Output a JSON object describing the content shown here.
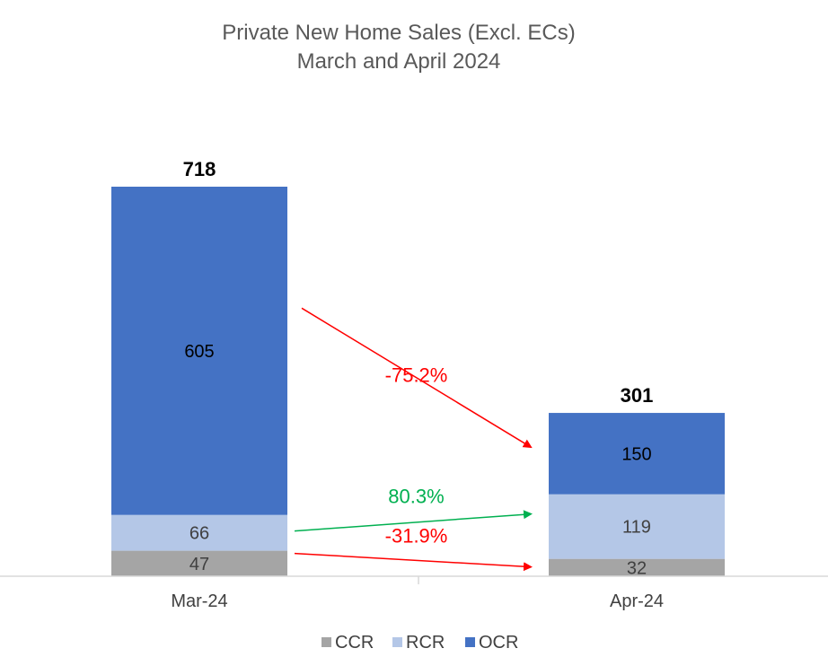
{
  "chart_data": {
    "type": "bar",
    "stacked": true,
    "title": [
      "Private New Home Sales (Excl. ECs)",
      "March and April 2024"
    ],
    "categories": [
      "Mar-24",
      "Apr-24"
    ],
    "series": [
      {
        "name": "CCR",
        "values": [
          47,
          32
        ],
        "color": "#a5a5a5",
        "label_color": "#404040"
      },
      {
        "name": "RCR",
        "values": [
          66,
          119
        ],
        "color": "#b4c7e7",
        "label_color": "#404040"
      },
      {
        "name": "OCR",
        "values": [
          605,
          150
        ],
        "color": "#4472c4",
        "label_color": "#000000"
      }
    ],
    "totals": [
      718,
      301
    ],
    "ylim": [
      0,
      718
    ],
    "grid": false,
    "legend": "bottom",
    "changes": [
      {
        "series": "OCR",
        "label": "-75.2%",
        "color": "#ff0000"
      },
      {
        "series": "RCR",
        "label": "80.3%",
        "color": "#00b050"
      },
      {
        "series": "CCR",
        "label": "-31.9%",
        "color": "#ff0000"
      }
    ]
  }
}
